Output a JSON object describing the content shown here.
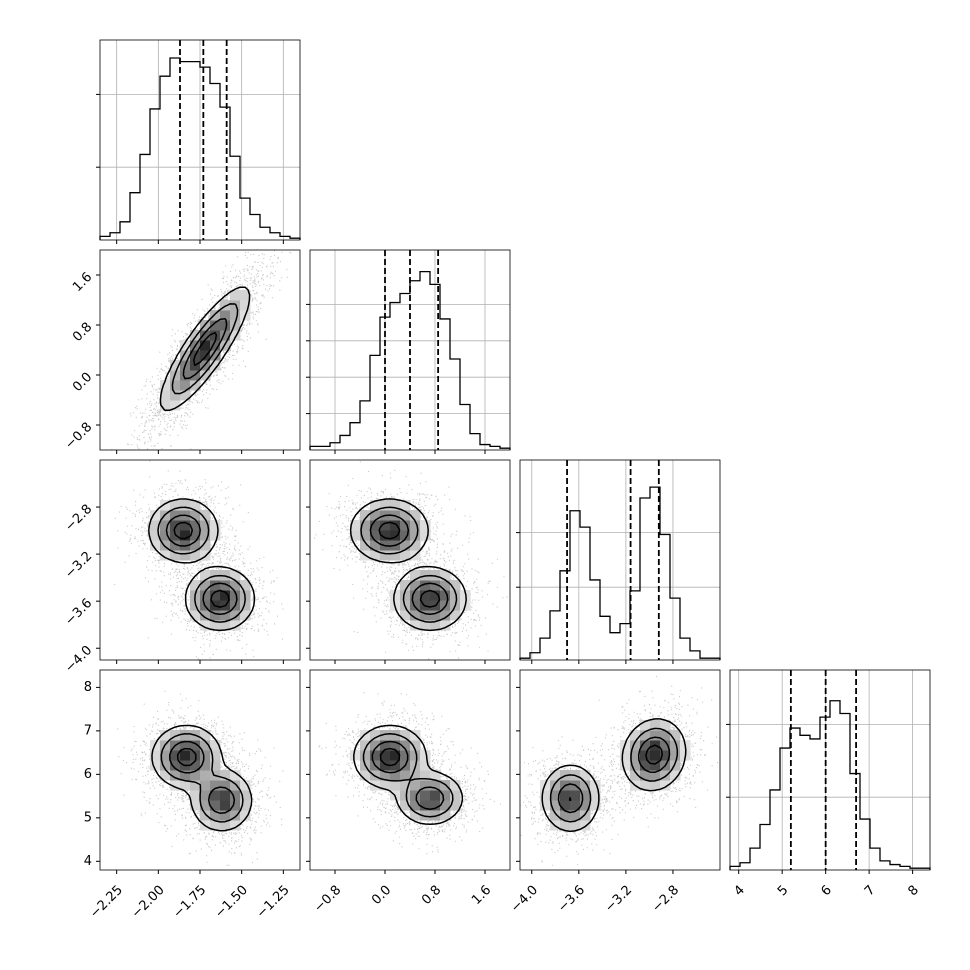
{
  "chart_data": {
    "type": "corner",
    "grid": true,
    "params": [
      {
        "range": [
          -2.35,
          -1.15
        ],
        "ticks": [
          -2.25,
          -2.0,
          -1.75,
          -1.5,
          -1.25
        ],
        "tick_labels": [
          "−2.25",
          "−2.00",
          "−1.75",
          "−1.50",
          "−1.25"
        ],
        "quantiles": [
          -1.87,
          -1.73,
          -1.59
        ],
        "hist": [
          0.02,
          0.04,
          0.1,
          0.26,
          0.47,
          0.72,
          0.9,
          1.0,
          0.98,
          0.98,
          0.95,
          0.86,
          0.73,
          0.46,
          0.23,
          0.14,
          0.07,
          0.04,
          0.02,
          0.01
        ],
        "hist_ticks": [
          0.4,
          0.8
        ]
      },
      {
        "range": [
          -1.2,
          2.0
        ],
        "ticks": [
          -0.8,
          0.0,
          0.8,
          1.6
        ],
        "tick_labels": [
          "−0.8",
          "0.0",
          "0.8",
          "1.6"
        ],
        "quantiles": [
          0.0,
          0.4,
          0.85
        ],
        "hist": [
          0.02,
          0.02,
          0.04,
          0.08,
          0.15,
          0.27,
          0.52,
          0.73,
          0.81,
          0.86,
          0.93,
          0.98,
          0.91,
          0.72,
          0.5,
          0.25,
          0.09,
          0.03,
          0.02,
          0.01
        ],
        "hist_ticks": [
          0.2,
          0.4,
          0.6,
          0.8
        ]
      },
      {
        "range": [
          -4.1,
          -2.4
        ],
        "ticks": [
          -4.0,
          -3.6,
          -3.2,
          -2.8
        ],
        "tick_labels": [
          "−4.0",
          "−3.6",
          "−3.2",
          "−2.8"
        ],
        "quantiles": [
          -3.7,
          -3.16,
          -2.92
        ],
        "hist": [
          0.01,
          0.04,
          0.12,
          0.27,
          0.49,
          0.82,
          0.73,
          0.44,
          0.24,
          0.15,
          0.2,
          0.38,
          0.89,
          0.95,
          0.69,
          0.34,
          0.12,
          0.05,
          0.01,
          0.01
        ],
        "hist_ticks": [
          0.4,
          0.7
        ]
      },
      {
        "range": [
          3.8,
          8.4
        ],
        "ticks": [
          4,
          5,
          6,
          7,
          8
        ],
        "tick_labels": [
          "4",
          "5",
          "6",
          "7",
          "8"
        ],
        "quantiles": [
          5.2,
          6.0,
          6.7
        ],
        "hist": [
          0.02,
          0.04,
          0.12,
          0.25,
          0.44,
          0.67,
          0.78,
          0.74,
          0.72,
          0.84,
          0.93,
          0.86,
          0.53,
          0.28,
          0.12,
          0.05,
          0.03,
          0.02,
          0.01,
          0.01
        ],
        "hist_ticks": [
          0.4,
          0.8
        ]
      }
    ],
    "joint": [
      {
        "row": 1,
        "col": 0,
        "components": [
          {
            "mx": -1.72,
            "my": 0.42,
            "sx": 0.13,
            "sy": 0.48,
            "rho": 0.85,
            "w": 1
          }
        ]
      },
      {
        "row": 2,
        "col": 0,
        "components": [
          {
            "mx": -1.85,
            "my": -3.0,
            "sx": 0.1,
            "sy": 0.13,
            "rho": 0,
            "w": 1
          },
          {
            "mx": -1.63,
            "my": -3.58,
            "sx": 0.1,
            "sy": 0.13,
            "rho": 0,
            "w": 1
          }
        ]
      },
      {
        "row": 2,
        "col": 1,
        "components": [
          {
            "mx": 0.07,
            "my": -3.0,
            "sx": 0.3,
            "sy": 0.13,
            "rho": 0,
            "w": 1
          },
          {
            "mx": 0.72,
            "my": -3.58,
            "sx": 0.28,
            "sy": 0.13,
            "rho": 0,
            "w": 1
          }
        ]
      },
      {
        "row": 3,
        "col": 0,
        "components": [
          {
            "mx": -1.83,
            "my": 6.4,
            "sx": 0.1,
            "sy": 0.35,
            "rho": 0,
            "w": 1
          },
          {
            "mx": -1.62,
            "my": 5.4,
            "sx": 0.09,
            "sy": 0.35,
            "rho": 0,
            "w": 0.85
          }
        ]
      },
      {
        "row": 3,
        "col": 1,
        "components": [
          {
            "mx": 0.08,
            "my": 6.4,
            "sx": 0.28,
            "sy": 0.35,
            "rho": 0,
            "w": 1
          },
          {
            "mx": 0.72,
            "my": 5.45,
            "sx": 0.26,
            "sy": 0.3,
            "rho": 0,
            "w": 0.85
          }
        ]
      },
      {
        "row": 3,
        "col": 2,
        "components": [
          {
            "mx": -3.67,
            "my": 5.45,
            "sx": 0.12,
            "sy": 0.38,
            "rho": 0,
            "w": 1
          },
          {
            "mx": -2.96,
            "my": 6.45,
            "sx": 0.13,
            "sy": 0.4,
            "rho": 0.1,
            "w": 1.15
          }
        ]
      }
    ]
  }
}
